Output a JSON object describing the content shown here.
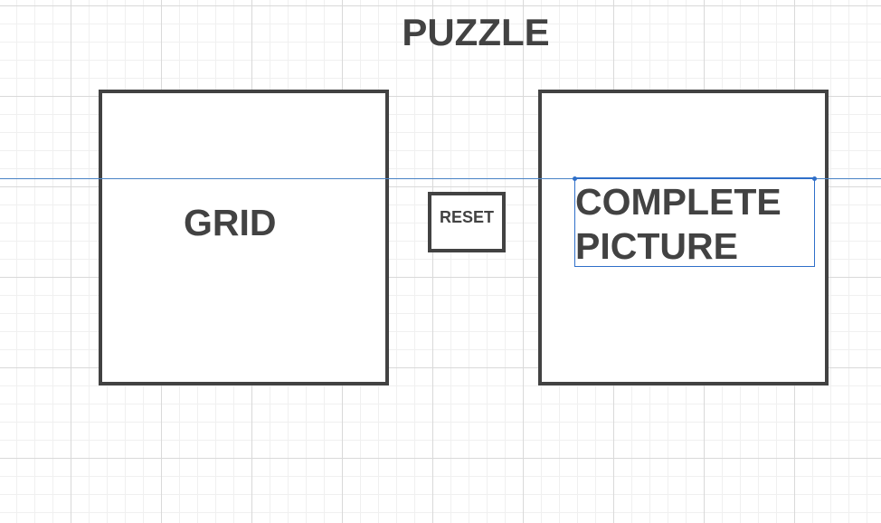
{
  "title": "PUZZLE",
  "grid": {
    "label": "GRID"
  },
  "reset": {
    "label": "RESET"
  },
  "picture": {
    "line1": "COMPLETE",
    "line2": "PICTURE"
  },
  "colors": {
    "stroke": "#424242",
    "text": "#424242",
    "selection": "#2f6fc9",
    "grid_line": "#d9d9d9"
  }
}
